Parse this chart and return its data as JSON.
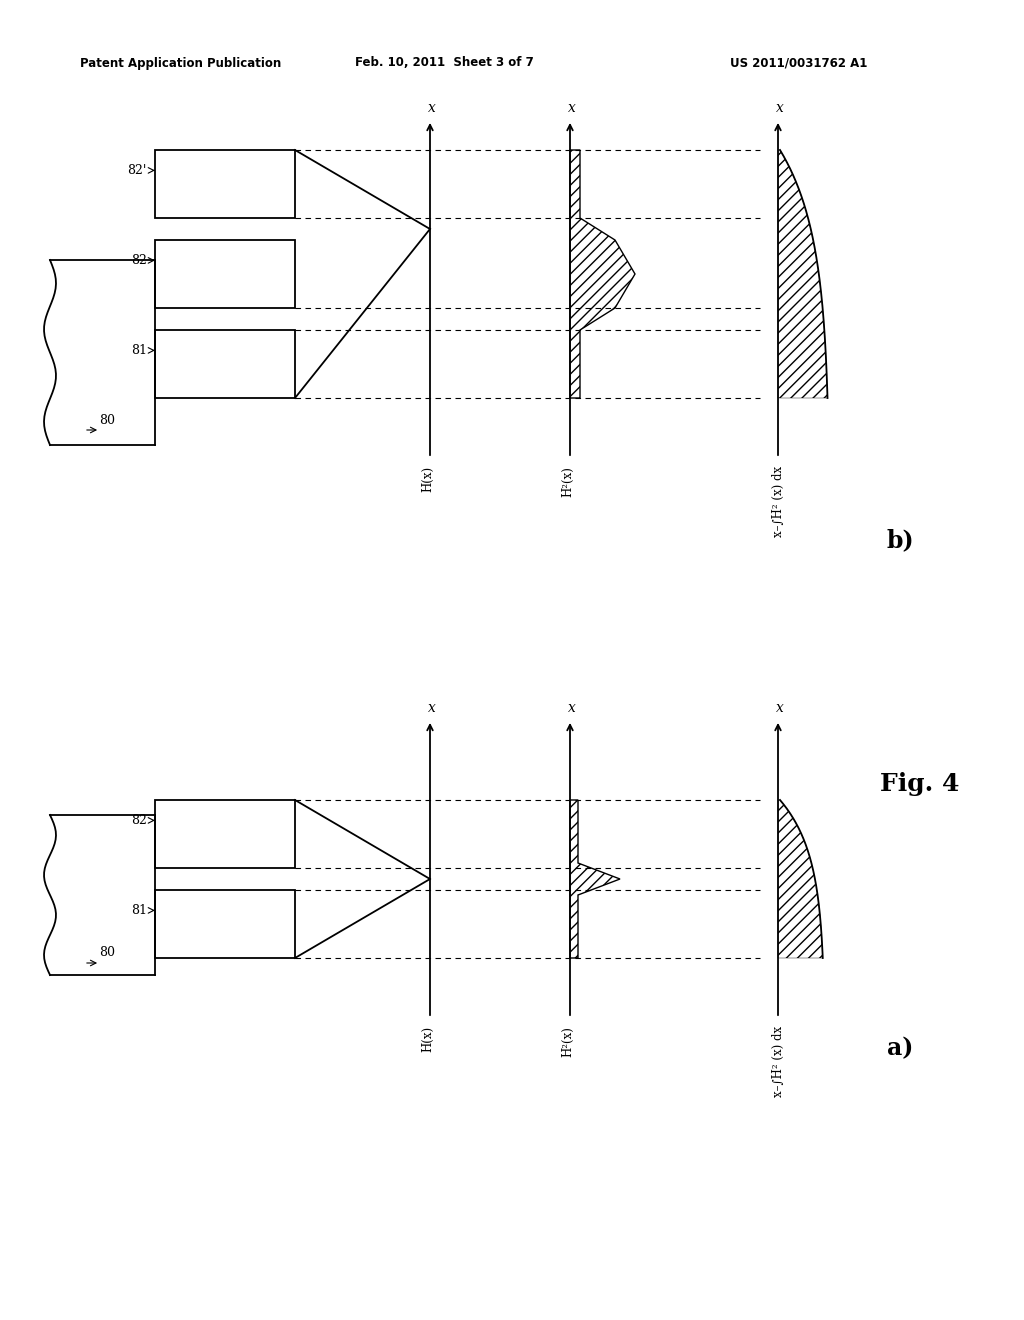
{
  "bg_color": "#ffffff",
  "header_left": "Patent Application Publication",
  "header_mid": "Feb. 10, 2011  Sheet 3 of 7",
  "header_right": "US 2011/0031762 A1",
  "fig_label": "Fig. 4",
  "panel_a_label": "a)",
  "panel_b_label": "b)",
  "label_80": "80",
  "label_81": "81",
  "label_82": "82",
  "label_82prime": "82'",
  "label_Hx": "H(x)",
  "label_H2x": "H²(x)",
  "label_integral": "x–∫H² (x) dx",
  "label_x_axis": "x"
}
